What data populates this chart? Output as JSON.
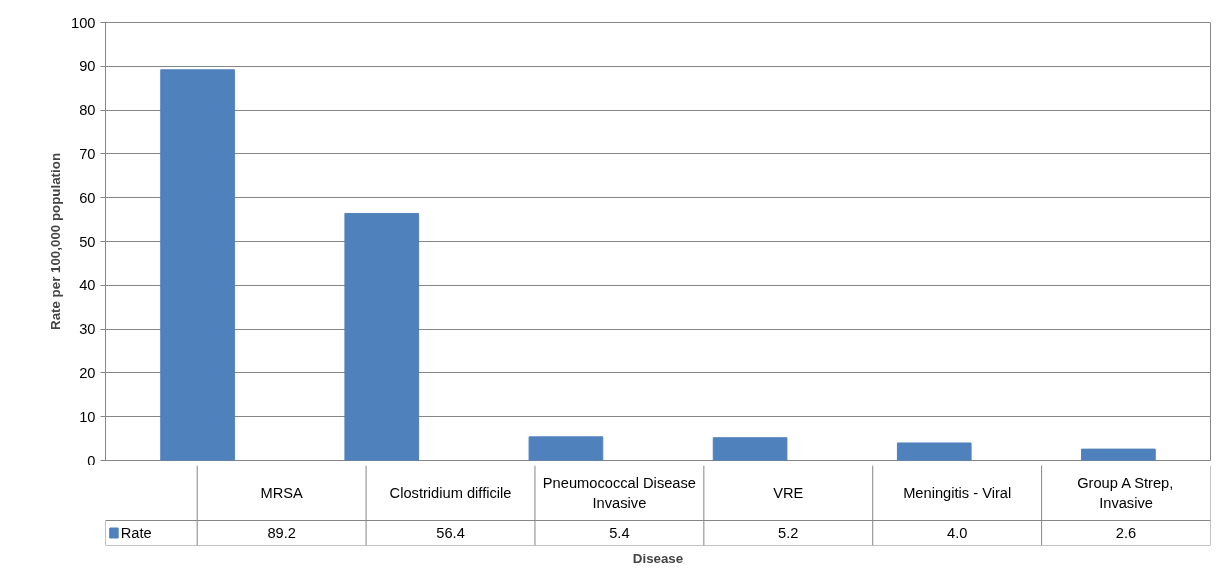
{
  "chart_data": {
    "type": "bar",
    "xlabel": "Disease",
    "ylabel": "Rate per 100,000 population",
    "categories": [
      "MRSA",
      "Clostridium difficile",
      "Pneumococcal Disease Invasive",
      "VRE",
      "Meningitis - Viral",
      "Group A Strep, Invasive"
    ],
    "series": [
      {
        "name": "Rate",
        "color": "#4f81bd",
        "values": [
          89.2,
          56.4,
          5.4,
          5.2,
          4.0,
          2.6
        ],
        "value_labels": [
          "89.2",
          "56.4",
          "5.4",
          "5.2",
          "4.0",
          "2.6"
        ]
      }
    ],
    "ylim": [
      0,
      100
    ],
    "yticks": [
      0,
      10,
      20,
      30,
      40,
      50,
      60,
      70,
      80,
      90,
      100
    ],
    "grid": "y",
    "legend": "bottom left"
  }
}
